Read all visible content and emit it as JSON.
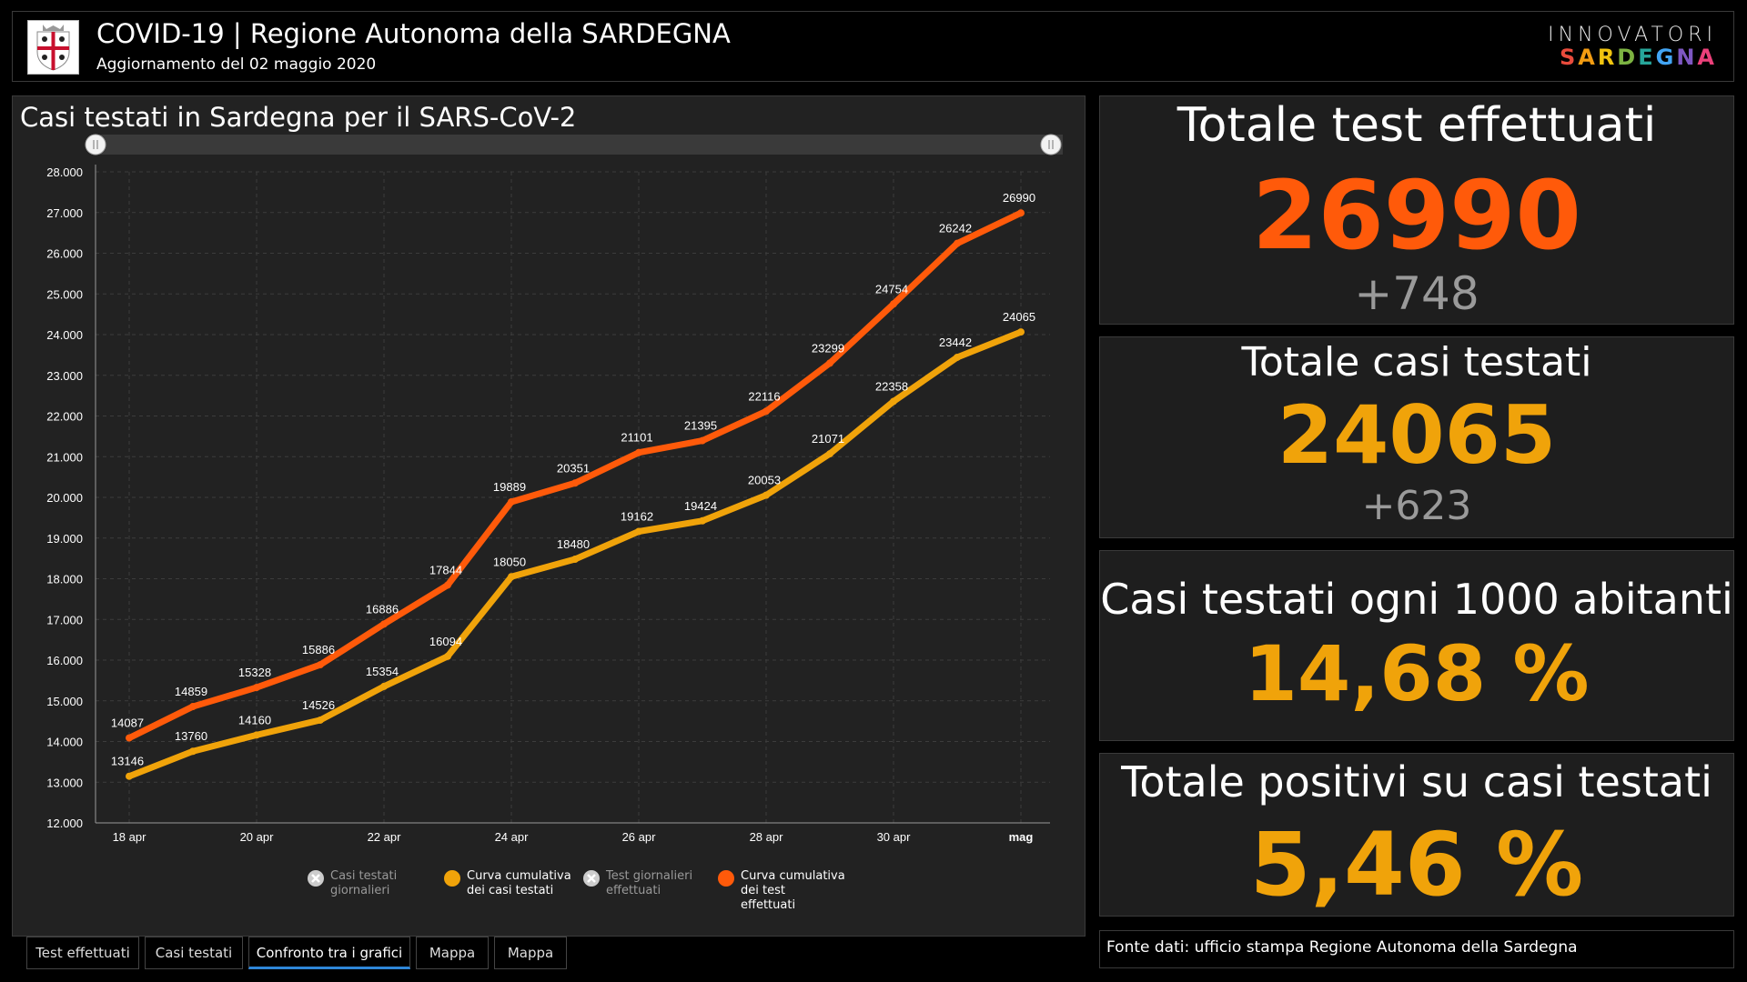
{
  "header": {
    "title": "COVID-19 | Regione Autonoma della SARDEGNA",
    "subtitle": "Aggiornamento del 02 maggio 2020",
    "brand_top": "INNOVATORI",
    "brand_bottom": "SARDEGNA"
  },
  "chart_panel": {
    "title": "Casi testati in Sardegna per il SARS-CoV-2"
  },
  "chart_data": {
    "type": "line",
    "title": "Casi testati in Sardegna per il SARS-CoV-2",
    "x_tick_labels": [
      "18 apr",
      "20 apr",
      "22 apr",
      "24 apr",
      "26 apr",
      "28 apr",
      "30 apr",
      "mag"
    ],
    "y_tick_labels": [
      "12.000",
      "13.000",
      "14.000",
      "15.000",
      "16.000",
      "17.000",
      "18.000",
      "19.000",
      "20.000",
      "21.000",
      "22.000",
      "23.000",
      "24.000",
      "25.000",
      "26.000",
      "27.000",
      "28.000"
    ],
    "ylim": [
      12000,
      28000
    ],
    "x": [
      "2020-04-18",
      "2020-04-19",
      "2020-04-20",
      "2020-04-21",
      "2020-04-22",
      "2020-04-23",
      "2020-04-24",
      "2020-04-25",
      "2020-04-26",
      "2020-04-27",
      "2020-04-28",
      "2020-04-29",
      "2020-04-30",
      "2020-05-01",
      "2020-05-02"
    ],
    "grid": true,
    "series": [
      {
        "name": "Curva cumulativa dei test effettuati",
        "color": "#ff5a0a",
        "values": [
          14087,
          14859,
          15328,
          15886,
          16886,
          17844,
          19889,
          20351,
          21101,
          21395,
          22116,
          23299,
          24754,
          26242,
          26990
        ]
      },
      {
        "name": "Curva cumulativa dei casi testati",
        "color": "#f0a30a",
        "values": [
          13146,
          13760,
          14160,
          14526,
          15354,
          16094,
          18050,
          18480,
          19162,
          19424,
          20053,
          21071,
          22358,
          23442,
          24065
        ]
      }
    ]
  },
  "legend": [
    {
      "line1": "Casi testati",
      "line2": "giornalieri",
      "line3": "",
      "active": false,
      "color": "#cccccc"
    },
    {
      "line1": "Curva cumulativa",
      "line2": "dei casi testati",
      "line3": "",
      "active": true,
      "color": "#f0a30a"
    },
    {
      "line1": "Test giornalieri",
      "line2": "effettuati",
      "line3": "",
      "active": false,
      "color": "#cccccc"
    },
    {
      "line1": "Curva cumulativa",
      "line2": "dei test",
      "line3": "effettuati",
      "active": true,
      "color": "#ff5a0a"
    }
  ],
  "tabs": [
    {
      "label": "Test effettuati"
    },
    {
      "label": "Casi testati"
    },
    {
      "label": "Confronto tra i grafici"
    },
    {
      "label": "Mappa"
    },
    {
      "label": "Mappa"
    }
  ],
  "stats": {
    "tests": {
      "label": "Totale test effettuati",
      "value": "26990",
      "delta": "+748",
      "color": "#ff5a0a"
    },
    "cases": {
      "label": "Totale casi testati",
      "value": "24065",
      "delta": "+623",
      "color": "#f0a30a"
    },
    "per1000": {
      "label": "Casi testati ogni 1000 abitanti",
      "value": "14,68 %",
      "color": "#f0a30a"
    },
    "positives": {
      "label": "Totale positivi su casi testati",
      "value": "5,46 %",
      "color": "#f0a30a"
    }
  },
  "source": "Fonte dati: ufficio stampa Regione Autonoma della Sardegna"
}
